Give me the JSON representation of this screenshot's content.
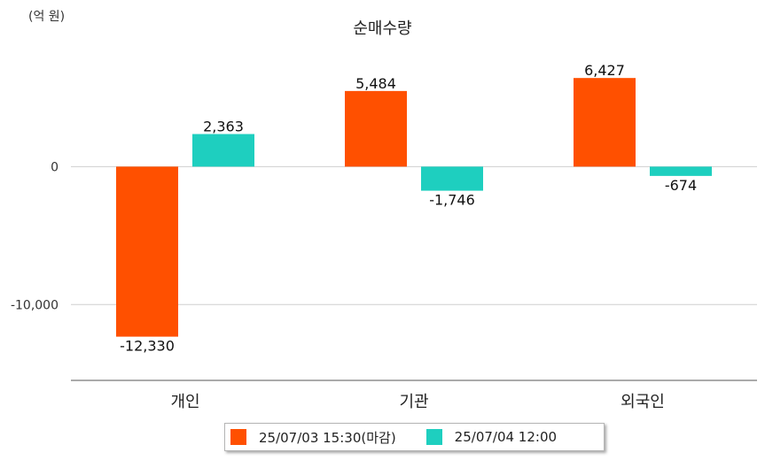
{
  "chart_data": {
    "type": "bar",
    "title": "순매수량",
    "unit_label": "(억 원)",
    "categories": [
      "개인",
      "기관",
      "외국인"
    ],
    "series": [
      {
        "name": "25/07/03 15:30(마감)",
        "color": "#ff5000",
        "values": [
          -12330,
          5484,
          6427
        ],
        "labels": [
          "-12,330",
          "5,484",
          "6,427"
        ]
      },
      {
        "name": "25/07/04 12:00",
        "color": "#1ecfbf",
        "values": [
          2363,
          -1746,
          -674
        ],
        "labels": [
          "2,363",
          "-1,746",
          "-674"
        ]
      }
    ],
    "yticks": [
      {
        "value": 0,
        "label": "0"
      },
      {
        "value": -10000,
        "label": "-10,000"
      }
    ],
    "ylim": [
      -15500,
      10800
    ],
    "grid": true,
    "legend_position": "bottom"
  }
}
